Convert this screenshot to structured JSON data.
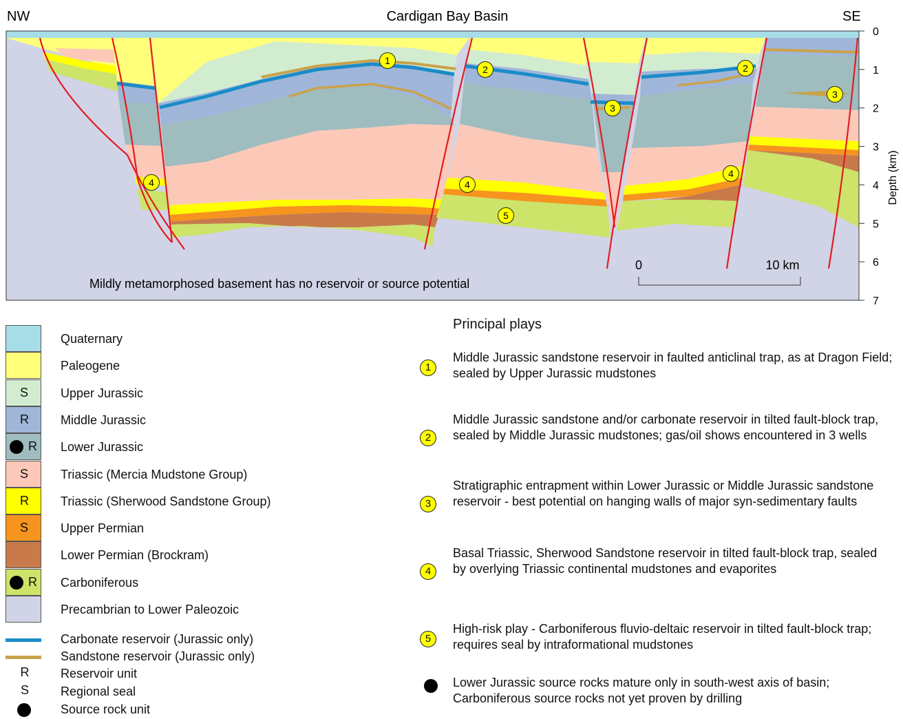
{
  "section": {
    "title": "Cardigan Bay Basin",
    "left_label": "NW",
    "right_label": "SE",
    "depth_axis_label": "Depth (km)",
    "depth_ticks": [
      "0",
      "1",
      "2",
      "3",
      "4",
      "5",
      "6",
      "7"
    ],
    "basement_note": "Mildly metamorphosed basement has no reservoir or source potential",
    "scale_bar": {
      "start_label": "0",
      "end_label": "10 km"
    },
    "play_markers": [
      "1",
      "2",
      "2",
      "3",
      "3",
      "4",
      "4",
      "4",
      "5"
    ]
  },
  "colors": {
    "quaternary": "#a6dde6",
    "paleogene": "#ffff7a",
    "upper_jurassic": "#d2ecd0",
    "middle_jurassic": "#9fb6d9",
    "lower_jurassic": "#9fbcbf",
    "triassic_mercia": "#fcc9b8",
    "triassic_sherwood": "#ffff00",
    "upper_permian": "#f7941d",
    "lower_permian": "#c87a4a",
    "carboniferous": "#cde36a",
    "precambrian": "#d1d4e6",
    "carbonate_reservoir": "#1a8cc8",
    "sandstone_reservoir": "#c9a24a",
    "fault": "#e31b23",
    "play_badge": "#ffff00"
  },
  "legend": {
    "units": [
      {
        "label": "Quaternary",
        "letter": "",
        "dot": false
      },
      {
        "label": "Paleogene",
        "letter": "",
        "dot": false
      },
      {
        "label": "Upper Jurassic",
        "letter": "S",
        "dot": false
      },
      {
        "label": "Middle Jurassic",
        "letter": "R",
        "dot": false
      },
      {
        "label": "Lower Jurassic",
        "letter": "R",
        "dot": true
      },
      {
        "label": "Triassic (Mercia Mudstone Group)",
        "letter": "S",
        "dot": false
      },
      {
        "label": "Triassic (Sherwood Sandstone Group)",
        "letter": "R",
        "dot": false
      },
      {
        "label": "Upper Permian",
        "letter": "S",
        "dot": false
      },
      {
        "label": "Lower Permian (Brockram)",
        "letter": "",
        "dot": false
      },
      {
        "label": "Carboniferous",
        "letter": "R",
        "dot": true
      },
      {
        "label": "Precambrian to Lower Paleozoic",
        "letter": "",
        "dot": false
      }
    ],
    "lines": [
      {
        "label": "Carbonate reservoir (Jurassic only)"
      },
      {
        "label": "Sandstone reservoir (Jurassic only)"
      }
    ],
    "symbols": [
      {
        "symbol": "R",
        "label": "Reservoir unit"
      },
      {
        "symbol": "S",
        "label": "Regional seal"
      },
      {
        "symbol": "",
        "label": "Source rock unit"
      }
    ]
  },
  "plays": {
    "title": "Principal plays",
    "items": [
      {
        "number": "1",
        "text": "Middle Jurassic sandstone reservoir in faulted anticlinal trap, as at Dragon Field; sealed by Upper Jurassic mudstones"
      },
      {
        "number": "2",
        "text": "Middle Jurassic sandstone and/or carbonate reservoir in tilted fault-block trap, sealed by Middle Jurassic mudstones; gas/oil shows encountered in 3 wells"
      },
      {
        "number": "3",
        "text": "Stratigraphic entrapment within Lower Jurassic or Middle Jurassic sandstone reservoir - best potential on hanging walls of major syn-sedimentary faults"
      },
      {
        "number": "4",
        "text": "Basal Triassic, Sherwood Sandstone reservoir in tilted fault-block trap, sealed by overlying Triassic continental mudstones and evaporites"
      },
      {
        "number": "5",
        "text": "High-risk play - Carboniferous fluvio-deltaic reservoir in tilted fault-block trap; requires seal by intraformational mudstones"
      }
    ],
    "source_note": "Lower Jurassic source rocks mature only in south-west axis of basin; Carboniferous source rocks not yet proven by drilling"
  }
}
